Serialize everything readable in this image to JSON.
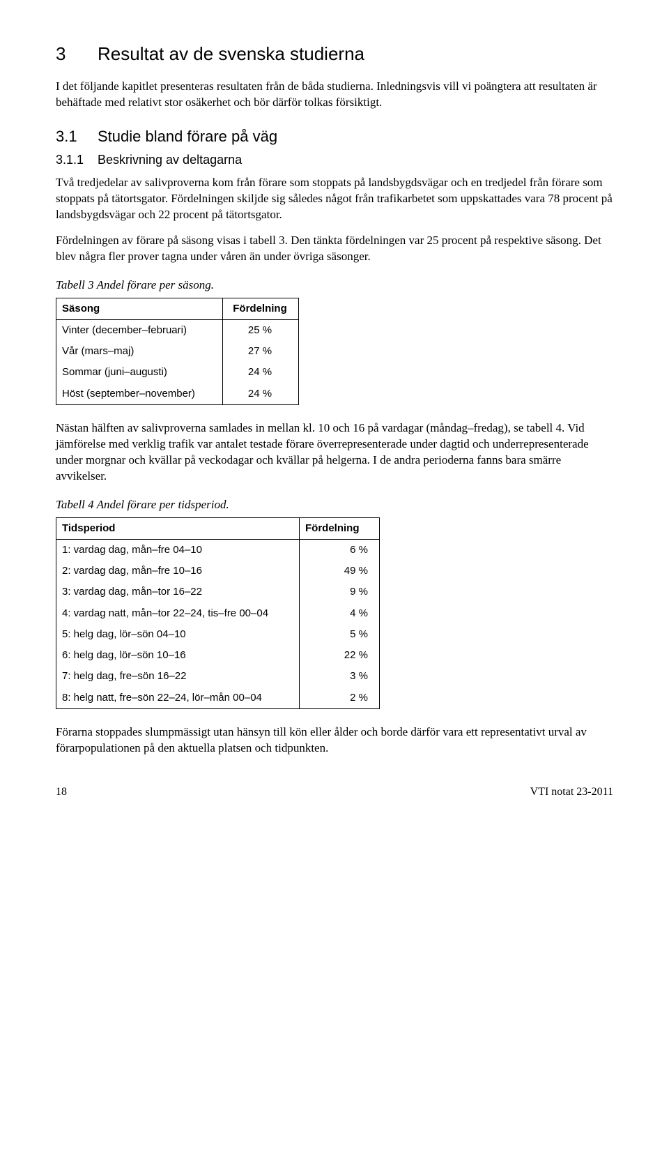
{
  "section": {
    "number": "3",
    "title": "Resultat av de svenska studierna"
  },
  "intro_paragraph": "I det följande kapitlet presenteras resultaten från de båda studierna. Inledningsvis vill vi poängtera att resultaten är behäftade med relativt stor osäkerhet och bör därför tolkas försiktigt.",
  "subsection": {
    "number": "3.1",
    "title": "Studie bland förare på väg"
  },
  "subsubsection": {
    "number": "3.1.1",
    "title": "Beskrivning av deltagarna"
  },
  "body_p1": "Två tredjedelar av salivproverna kom från förare som stoppats på landsbygdsvägar och en tredjedel från förare som stoppats på tätortsgator. Fördelningen skiljde sig således något från trafikarbetet som uppskattades vara 78 procent på landsbygdsvägar och 22 procent på tätortsgator.",
  "body_p2": "Fördelningen av förare på säsong visas i tabell 3. Den tänkta fördelningen var 25 procent på respektive säsong. Det blev några fler prover tagna under våren än under övriga säsonger.",
  "table3": {
    "caption": "Tabell 3  Andel förare per säsong.",
    "columns": [
      "Säsong",
      "Fördelning"
    ],
    "rows": [
      [
        "Vinter (december–februari)",
        "25 %"
      ],
      [
        "Vår (mars–maj)",
        "27 %"
      ],
      [
        "Sommar (juni–augusti)",
        "24 %"
      ],
      [
        "Höst (september–november)",
        "24 %"
      ]
    ]
  },
  "body_p3": "Nästan hälften av salivproverna samlades in mellan kl. 10 och 16 på vardagar (måndag–fredag), se tabell 4. Vid jämförelse med verklig trafik var antalet testade förare överrepresenterade under dagtid och underrepresenterade under morgnar och kvällar på veckodagar och kvällar på helgerna. I de andra perioderna fanns bara smärre avvikelser.",
  "table4": {
    "caption": "Tabell 4  Andel förare per tidsperiod.",
    "columns": [
      "Tidsperiod",
      "Fördelning"
    ],
    "rows": [
      [
        "1: vardag dag, mån–fre 04–10",
        "6 %"
      ],
      [
        "2: vardag dag, mån–fre 10–16",
        "49 %"
      ],
      [
        "3: vardag dag, mån–tor 16–22",
        "9 %"
      ],
      [
        "4: vardag natt, mån–tor 22–24, tis–fre 00–04",
        "4 %"
      ],
      [
        "5: helg dag, lör–sön 04–10",
        "5 %"
      ],
      [
        "6: helg dag, lör–sön 10–16",
        "22 %"
      ],
      [
        "7: helg dag, fre–sön 16–22",
        "3 %"
      ],
      [
        "8: helg natt, fre–sön 22–24, lör–mån 00–04",
        "2 %"
      ]
    ]
  },
  "body_p4": "Förarna stoppades slumpmässigt utan hänsyn till kön eller ålder och borde därför vara ett representativt urval av förarpopulationen på den aktuella platsen och tidpunkten.",
  "footer": {
    "page": "18",
    "doc_ref": "VTI notat 23-2011"
  }
}
